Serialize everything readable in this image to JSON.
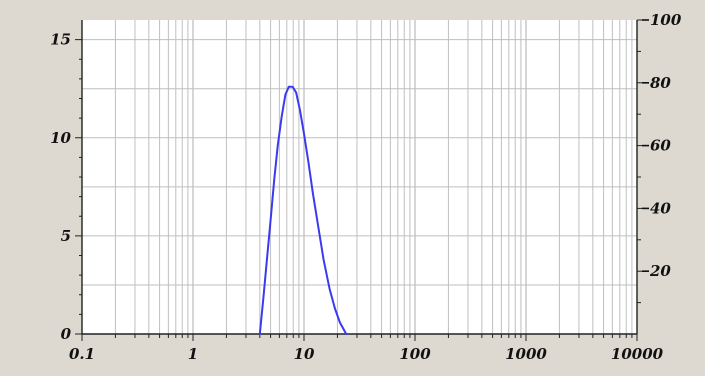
{
  "chart_data": {
    "type": "line",
    "title": "",
    "xlabel": "",
    "ylabel": "",
    "x_scale": "log",
    "xlim": [
      0.1,
      10000
    ],
    "ylim": [
      0,
      16
    ],
    "y2lim": [
      0,
      100
    ],
    "grid": true,
    "legend": "none",
    "x_ticks": [
      {
        "value": 0.1,
        "label": "0.1"
      },
      {
        "value": 1,
        "label": "1"
      },
      {
        "value": 10,
        "label": "10"
      },
      {
        "value": 100,
        "label": "100"
      },
      {
        "value": 1000,
        "label": "1000"
      },
      {
        "value": 10000,
        "label": "10000"
      }
    ],
    "y_ticks": [
      {
        "value": 0,
        "label": "0"
      },
      {
        "value": 5,
        "label": "5"
      },
      {
        "value": 10,
        "label": "10"
      },
      {
        "value": 15,
        "label": "15"
      }
    ],
    "y2_ticks": [
      {
        "value": 20,
        "label": "20"
      },
      {
        "value": 40,
        "label": "40"
      },
      {
        "value": 60,
        "label": "60"
      },
      {
        "value": 80,
        "label": "80"
      },
      {
        "value": 100,
        "label": "100"
      }
    ],
    "series": [
      {
        "color": "#3a3af0",
        "points": [
          [
            4.0,
            0.0
          ],
          [
            4.3,
            1.8
          ],
          [
            4.6,
            3.6
          ],
          [
            5.0,
            5.8
          ],
          [
            5.4,
            7.9
          ],
          [
            5.8,
            9.6
          ],
          [
            6.3,
            11.1
          ],
          [
            6.8,
            12.2
          ],
          [
            7.3,
            12.6
          ],
          [
            7.9,
            12.6
          ],
          [
            8.5,
            12.3
          ],
          [
            9.2,
            11.4
          ],
          [
            10.0,
            10.2
          ],
          [
            11.0,
            8.7
          ],
          [
            12.0,
            7.2
          ],
          [
            13.5,
            5.4
          ],
          [
            15.0,
            3.8
          ],
          [
            17.0,
            2.3
          ],
          [
            19.0,
            1.3
          ],
          [
            21.0,
            0.6
          ],
          [
            24.0,
            0.0
          ]
        ]
      }
    ],
    "colors": {
      "background": "#ddd9d1",
      "plot_background": "#ffffff",
      "grid": "#bfbfbf",
      "axis": "#222222"
    }
  }
}
